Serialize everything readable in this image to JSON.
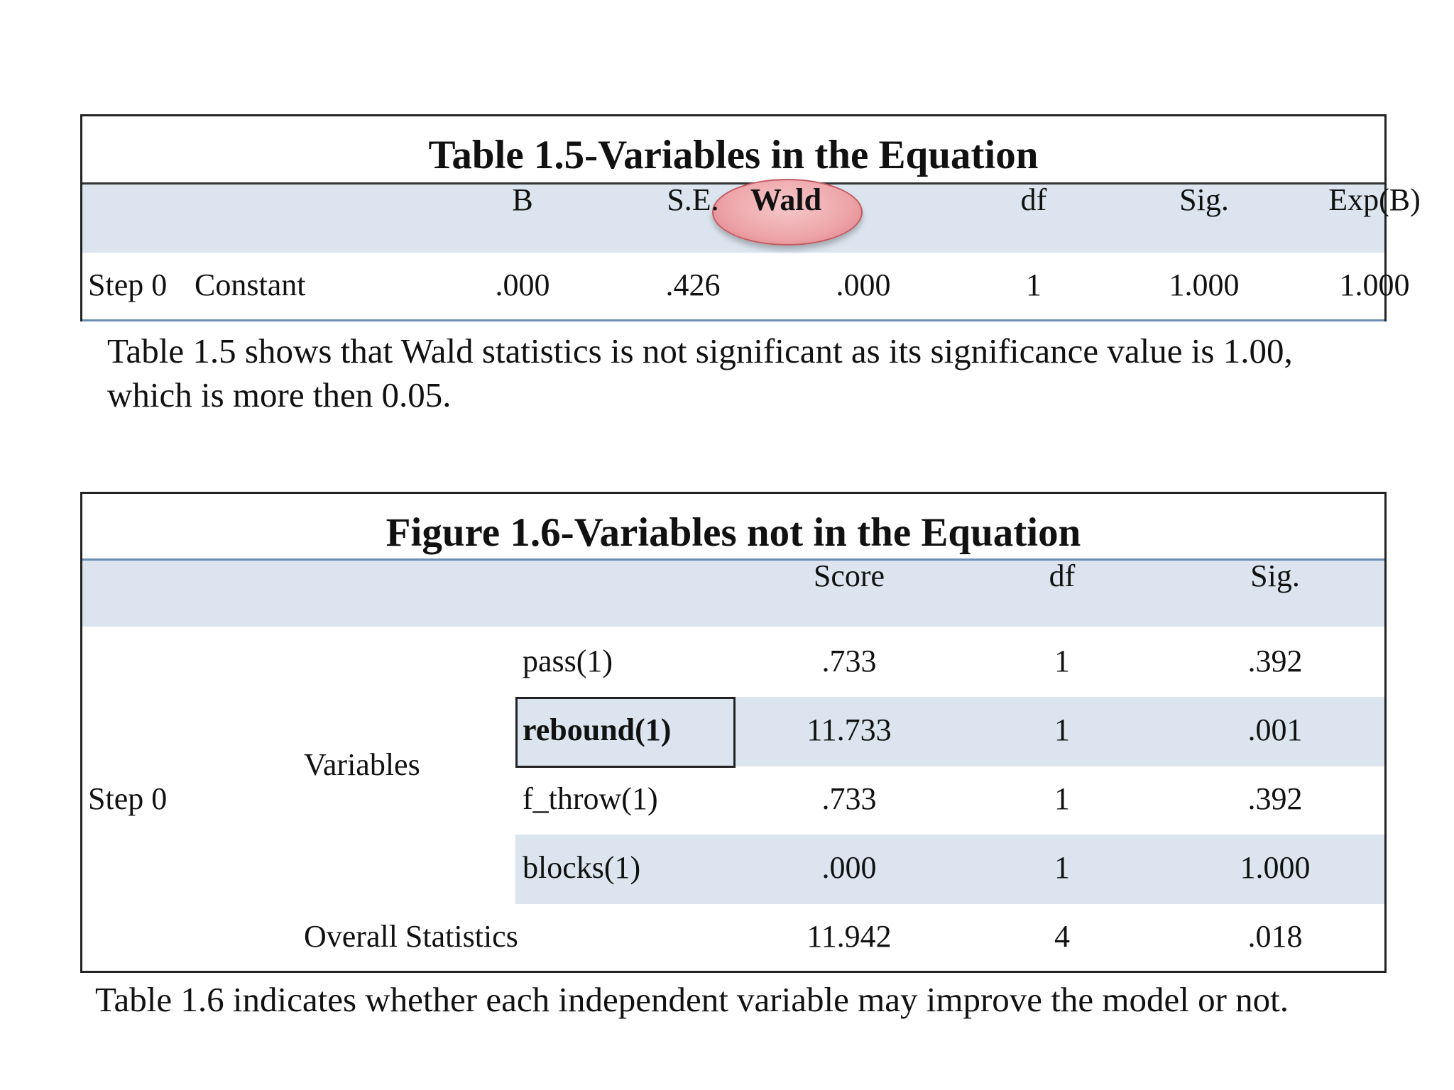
{
  "table1": {
    "title": "Table 1.5-Variables in the Equation",
    "headers": [
      "B",
      "S.E.",
      "Wald",
      "df",
      "Sig.",
      "Exp(B)"
    ],
    "row": {
      "step": "Step 0",
      "label": "Constant",
      "values": [
        ".000",
        ".426",
        ".000",
        "1",
        "1.000",
        "1.000"
      ]
    },
    "highlighted_header": "Wald",
    "highlight_color": "#eda4a8"
  },
  "paragraph1": {
    "line1": "Table 1.5 shows that Wald statistics is not significant as its significance value is 1.00,",
    "line2": "which is more then 0.05."
  },
  "table2": {
    "title": "Figure 1.6-Variables not in the Equation",
    "headers": [
      "Score",
      "df",
      "Sig."
    ],
    "step": "Step 0",
    "group_label": "Variables",
    "rows": [
      {
        "name": "pass(1)",
        "score": ".733",
        "df": "1",
        "sig": ".392"
      },
      {
        "name": "rebound(1)",
        "score": "11.733",
        "df": "1",
        "sig": ".001"
      },
      {
        "name": "f_throw(1)",
        "score": ".733",
        "df": "1",
        "sig": ".392"
      },
      {
        "name": "blocks(1)",
        "score": ".000",
        "df": "1",
        "sig": "1.000"
      }
    ],
    "overall": {
      "label": "Overall Statistics",
      "score": "11.942",
      "df": "4",
      "sig": ".018"
    },
    "header_band_color": "#dce5ef"
  },
  "paragraph2": {
    "line1": "Table 1.6 indicates whether each independent variable may improve the model or not."
  }
}
